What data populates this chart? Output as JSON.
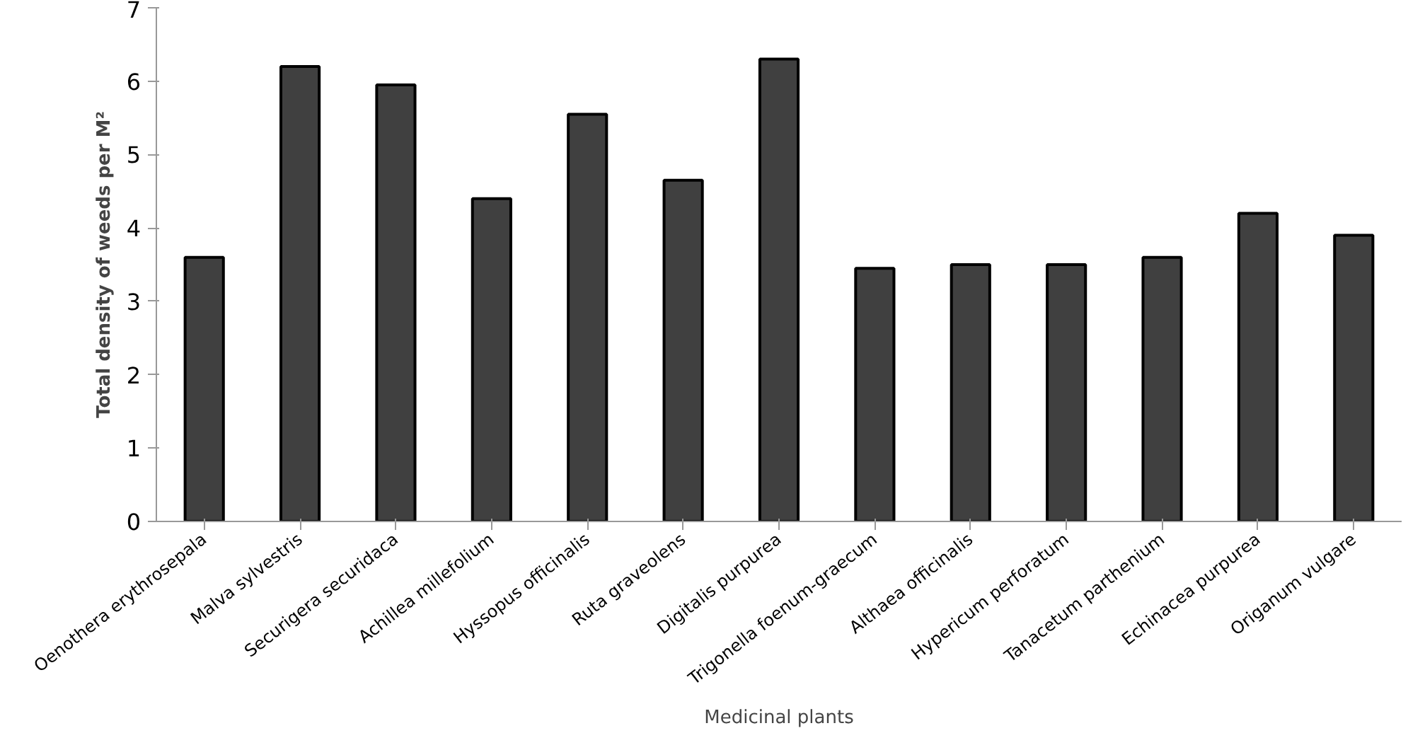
{
  "chart_data": {
    "type": "bar",
    "xlabel": "Medicinal plants",
    "ylabel": "Total density of weeds per M²",
    "categories": [
      "Oenothera erythrosepala",
      "Malva sylvestris",
      "Securigera securidaca",
      "Achillea millefolium",
      "Hyssopus officinalis",
      "Ruta graveolens",
      "Digitalis purpurea",
      "Trigonella foenum-graecum",
      "Althaea officinalis",
      "Hypericum perforatum",
      "Tanacetum parthenium",
      "Echinacea purpurea",
      "Origanum vulgare"
    ],
    "values": [
      3.6,
      6.2,
      5.95,
      4.4,
      5.55,
      4.65,
      6.3,
      3.45,
      3.5,
      3.5,
      3.6,
      4.2,
      3.9
    ],
    "color": "#404040",
    "ylim": [
      0,
      7
    ],
    "yticks": [
      0,
      1,
      2,
      3,
      4,
      5,
      6,
      7
    ],
    "grid": false
  }
}
